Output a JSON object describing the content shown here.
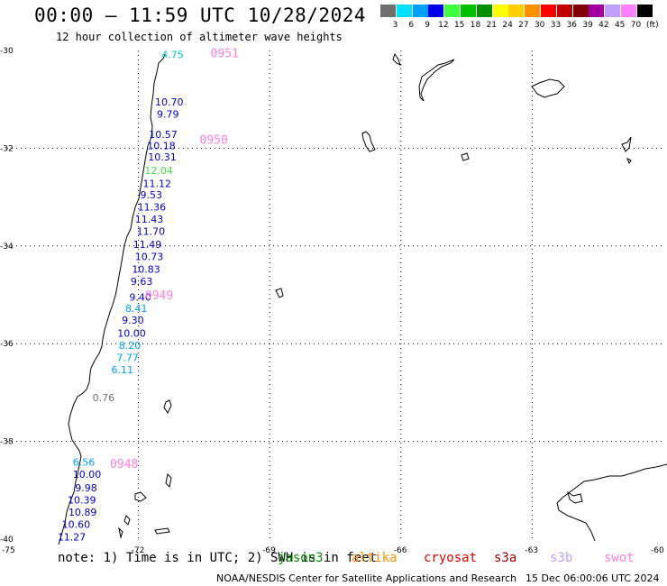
{
  "header": {
    "title": "00:00 – 11:59 UTC 10/28/2024",
    "subtitle": "12 hour collection of altimeter wave heights"
  },
  "color_scale": {
    "unit_label": "(ft)",
    "bins": [
      {
        "label": "3",
        "color": "#707070"
      },
      {
        "label": "6",
        "color": "#00e0ff"
      },
      {
        "label": "9",
        "color": "#00a0ff"
      },
      {
        "label": "12",
        "color": "#0000e8"
      },
      {
        "label": "15",
        "color": "#40ff40"
      },
      {
        "label": "18",
        "color": "#00c000"
      },
      {
        "label": "21",
        "color": "#009000"
      },
      {
        "label": "24",
        "color": "#ffff00"
      },
      {
        "label": "27",
        "color": "#ffd000"
      },
      {
        "label": "30",
        "color": "#ff9000"
      },
      {
        "label": "33",
        "color": "#ff0000"
      },
      {
        "label": "36",
        "color": "#c00000"
      },
      {
        "label": "39",
        "color": "#800000"
      },
      {
        "label": "42",
        "color": "#a000a0"
      },
      {
        "label": "45",
        "color": "#c0a0ff"
      },
      {
        "label": "70",
        "color": "#ff80ff"
      },
      {
        "label": "",
        "color": "#000000"
      }
    ]
  },
  "axes": {
    "lat_labels": [
      "-30",
      "-32",
      "-34",
      "-36",
      "-38",
      "-40"
    ],
    "lon_labels": [
      "-75",
      "-72",
      "-69",
      "-66",
      "-63",
      "-60"
    ]
  },
  "measurements": [
    {
      "text": "4.75",
      "lat": -30.08,
      "lon": -71.47,
      "color": "#00c8c8"
    },
    {
      "text": "10.70",
      "lat": -31.05,
      "lon": -71.62,
      "color": "#0000c0"
    },
    {
      "text": "9.79",
      "lat": -31.3,
      "lon": -71.58,
      "color": "#0000c0"
    },
    {
      "text": "10.57",
      "lat": -31.72,
      "lon": -71.76,
      "color": "#0000c0"
    },
    {
      "text": "10.18",
      "lat": -31.95,
      "lon": -71.8,
      "color": "#0000c0"
    },
    {
      "text": "10.31",
      "lat": -32.18,
      "lon": -71.78,
      "color": "#0000c0"
    },
    {
      "text": "12.04",
      "lat": -32.45,
      "lon": -71.86,
      "color": "#40e040"
    },
    {
      "text": "11.12",
      "lat": -32.72,
      "lon": -71.9,
      "color": "#0000c0"
    },
    {
      "text": "9.53",
      "lat": -32.95,
      "lon": -71.96,
      "color": "#0000c0"
    },
    {
      "text": "11.36",
      "lat": -33.2,
      "lon": -72.02,
      "color": "#0000c0"
    },
    {
      "text": "11.43",
      "lat": -33.45,
      "lon": -72.08,
      "color": "#0000c0"
    },
    {
      "text": "11.70",
      "lat": -33.7,
      "lon": -72.04,
      "color": "#0000c0"
    },
    {
      "text": "11.49",
      "lat": -33.97,
      "lon": -72.12,
      "color": "#0000c0"
    },
    {
      "text": "10.73",
      "lat": -34.22,
      "lon": -72.08,
      "color": "#0000c0"
    },
    {
      "text": "10.83",
      "lat": -34.47,
      "lon": -72.15,
      "color": "#0000c0"
    },
    {
      "text": "9.63",
      "lat": -34.72,
      "lon": -72.18,
      "color": "#0000c0"
    },
    {
      "text": "9.40",
      "lat": -35.05,
      "lon": -72.21,
      "color": "#0000c0"
    },
    {
      "text": "8.41",
      "lat": -35.28,
      "lon": -72.3,
      "color": "#00a0ff"
    },
    {
      "text": "9.30",
      "lat": -35.52,
      "lon": -72.38,
      "color": "#0000c0"
    },
    {
      "text": "10.00",
      "lat": -35.78,
      "lon": -72.48,
      "color": "#0000c0"
    },
    {
      "text": "8.20",
      "lat": -36.03,
      "lon": -72.45,
      "color": "#00a0ff"
    },
    {
      "text": "7.77",
      "lat": -36.28,
      "lon": -72.5,
      "color": "#00a0ff"
    },
    {
      "text": "6.11",
      "lat": -36.53,
      "lon": -72.62,
      "color": "#00a0ff"
    },
    {
      "text": "0.76",
      "lat": -37.1,
      "lon": -73.05,
      "color": "#707070"
    },
    {
      "text": "6.56",
      "lat": -38.42,
      "lon": -73.5,
      "color": "#00a0ff"
    },
    {
      "text": "10.00",
      "lat": -38.67,
      "lon": -73.5,
      "color": "#0000c0"
    },
    {
      "text": "9.98",
      "lat": -38.95,
      "lon": -73.45,
      "color": "#0000c0"
    },
    {
      "text": "10.39",
      "lat": -39.2,
      "lon": -73.62,
      "color": "#0000c0"
    },
    {
      "text": "10.89",
      "lat": -39.45,
      "lon": -73.6,
      "color": "#0000c0"
    },
    {
      "text": "10.60",
      "lat": -39.7,
      "lon": -73.75,
      "color": "#0000c0"
    },
    {
      "text": "11.27",
      "lat": -39.95,
      "lon": -73.85,
      "color": "#0000c0"
    }
  ],
  "passes": [
    {
      "text": "0951",
      "lat": -30.05,
      "lon": -70.35
    },
    {
      "text": "0950",
      "lat": -31.82,
      "lon": -70.6
    },
    {
      "text": "0949",
      "lat": -35.0,
      "lon": -71.85
    },
    {
      "text": "0948",
      "lat": -38.45,
      "lon": -72.65
    }
  ],
  "pass_color": "#ff80e0",
  "note": {
    "text": "note: 1) Time is in UTC; 2) SWH is in feet",
    "satellites": [
      {
        "name": "jason3",
        "color": "#009000"
      },
      {
        "name": "altika",
        "color": "#ff9000"
      },
      {
        "name": "cryosat",
        "color": "#e00000"
      },
      {
        "name": "s3a",
        "color": "#a00000"
      },
      {
        "name": "s3b",
        "color": "#c0a0ff"
      },
      {
        "name": "swot",
        "color": "#ff80e0"
      }
    ]
  },
  "footer": {
    "credit": "NOAA/NESDIS Center for Satellite Applications and Research",
    "generated": "15 Dec 06:00:06 UTC 2024"
  }
}
